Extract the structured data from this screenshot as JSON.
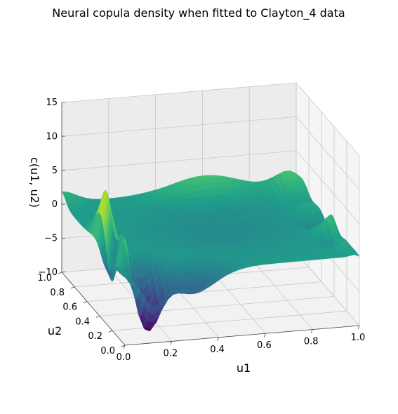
{
  "chart_data": {
    "type": "surface3d",
    "title": "Neural copula density when fitted to Clayton_4 data",
    "xlabel": "u1",
    "ylabel": "u2",
    "zlabel": "c(u1, u2)",
    "xlim": [
      0.0,
      1.0
    ],
    "ylim": [
      0.0,
      1.0
    ],
    "zlim": [
      -10,
      15
    ],
    "x_ticks": [
      "0.0",
      "0.2",
      "0.4",
      "0.6",
      "0.8",
      "1.0"
    ],
    "y_ticks": [
      "0.0",
      "0.2",
      "0.4",
      "0.6",
      "0.8",
      "1.0"
    ],
    "z_ticks": [
      "−10",
      "−5",
      "0",
      "5",
      "10",
      "15"
    ],
    "z_tick_values": [
      -10,
      -5,
      0,
      5,
      10,
      15
    ],
    "colormap": "viridis",
    "grid": true,
    "surface_description": {
      "peak_max": 8.0,
      "trough_min": -9.0,
      "baseline": 0.0
    }
  }
}
